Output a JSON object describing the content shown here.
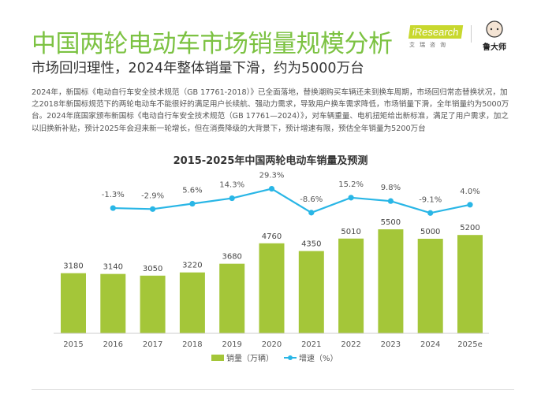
{
  "header": {
    "title": "中国两轮电动车市场销量规模分析",
    "subtitle": "市场回归理性，2024年整体销量下滑，约为5000万台",
    "paragraph": "2024年，新国标《电动自行车安全技术规范（GB 17761-2018）》已全面落地，替换潮购买车辆还未到换车周期，市场回归常态替换状况，加之2018年新国标规范下的两轮电动车不能很好的满足用户长续航、强动力需求，导致用户换车需求降低，市场销量下滑，全年销量约为5000万台。2024年底国家颁布新国标《电动自行车安全技术规范（GB 17761—2024）》，对车辆重量、电机扭矩给出新标准，满足了用户需求，加之以旧换新补贴，预计2025年会迎来新一轮增长，但在消费降级的大背景下，预计增速有限，预估全年销量为5200万台"
  },
  "logos": {
    "iresearch": "iResearch",
    "iresearch_cn": "艾瑞咨询",
    "mascot": "鲁大师"
  },
  "chart_data": {
    "type": "bar+line",
    "title": "2015-2025年中国两轮电动车销量及预测",
    "categories": [
      "2015",
      "2016",
      "2017",
      "2018",
      "2019",
      "2020",
      "2021",
      "2022",
      "2023",
      "2024",
      "2025e"
    ],
    "series": [
      {
        "name": "销量（万辆）",
        "type": "bar",
        "color": "#a4c639",
        "values": [
          3180,
          3140,
          3050,
          3220,
          3680,
          4760,
          4350,
          5010,
          5500,
          5000,
          5200
        ]
      },
      {
        "name": "增速（%）",
        "type": "line",
        "color": "#29b6e6",
        "values": [
          null,
          -1.3,
          -2.9,
          5.6,
          14.3,
          29.3,
          -8.6,
          15.2,
          9.8,
          -9.1,
          4.0
        ]
      }
    ],
    "legend": "bottom",
    "grid": false
  }
}
